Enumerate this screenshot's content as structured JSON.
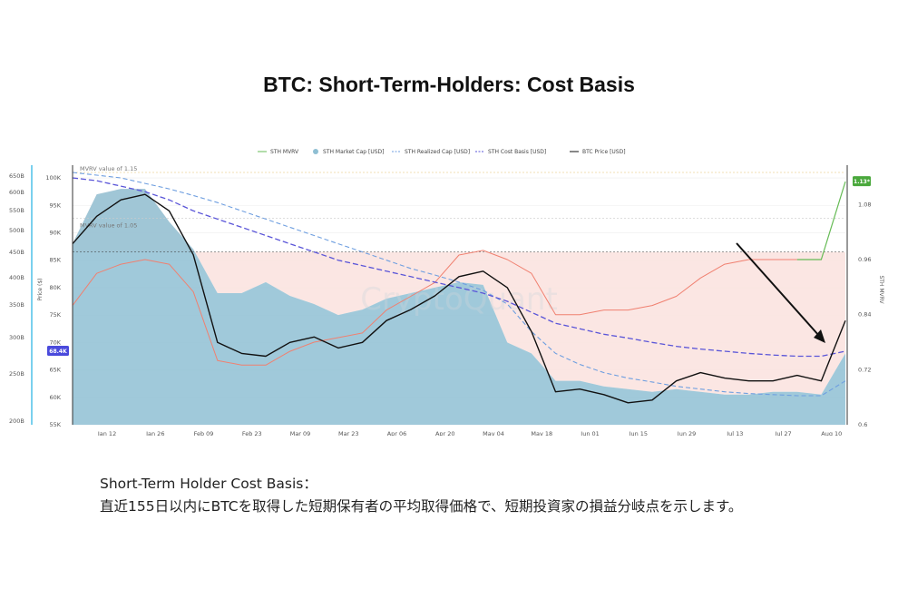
{
  "title": "BTC: Short-Term-Holders: Cost Basis",
  "caption": {
    "line1": "Short-Term Holder Cost Basis：",
    "line2": "直近155日以内にBTCを取得した短期保有者の平均取得価格で、短期投資家の損益分岐点を示します。"
  },
  "watermark": "CryptoQuant",
  "colors": {
    "mvrv": "#f08070",
    "mvrv_green": "#66bb55",
    "market_cap_fill": "#8fbfd3",
    "realized_cap": "#6f9fe0",
    "cost_basis": "#5a55d8",
    "btc_price": "#111111",
    "profit_zone": "#fbe3e0",
    "badge_price": "#4a4adc",
    "badge_mvrv": "#4aa83c"
  },
  "chart_data": {
    "type": "line",
    "title": "",
    "legend": [
      "STH MVRV",
      "STH Market Cap [USD]",
      "STH Realized Cap [USD]",
      "STH Cost Basis [USD]",
      "BTC Price [USD]"
    ],
    "legend_position": "top",
    "x_ticks": [
      "Jan 12",
      "Jan 26",
      "Feb 09",
      "Feb 23",
      "Mar 09",
      "Mar 23",
      "Apr 06",
      "Apr 20",
      "May 04",
      "May 18",
      "Jun 01",
      "Jun 15",
      "Jun 29",
      "Jul 13",
      "Jul 27",
      "Aug 10"
    ],
    "left_axis_cap": {
      "ticks": [
        "200B",
        "250B",
        "300B",
        "350B",
        "400B",
        "450B",
        "500B",
        "550B",
        "600B",
        "650B"
      ]
    },
    "price_axis": {
      "label": "Price ($)",
      "ticks": [
        "55K",
        "60K",
        "65K",
        "70K",
        "75K",
        "80K",
        "85K",
        "90K",
        "95K",
        "100K"
      ],
      "ylim": [
        55000,
        101000
      ]
    },
    "right_axis": {
      "label": "STH MVRV",
      "ticks": [
        "0.6",
        "0.72",
        "0.84",
        "0.96",
        "1.08"
      ],
      "ylim": [
        0.6,
        1.15
      ]
    },
    "annotations": [
      "MVRV value of 1.15",
      "MVRV value of 1.05"
    ],
    "badges": {
      "price": "68.4K",
      "mvrv": "1.13*"
    },
    "x": [
      0,
      7,
      14,
      21,
      28,
      35,
      42,
      49,
      56,
      63,
      70,
      77,
      84,
      91,
      98,
      105,
      112,
      119,
      126,
      133,
      140,
      147,
      154,
      161,
      168,
      175,
      182,
      189,
      196,
      203,
      210,
      217,
      224
    ],
    "series": [
      {
        "name": "BTC Price [USD]",
        "axis": "price",
        "values": [
          88000,
          93000,
          96000,
          97000,
          94000,
          86000,
          70000,
          68000,
          67500,
          70000,
          71000,
          69000,
          70000,
          74000,
          76000,
          78500,
          82000,
          83000,
          80000,
          72000,
          61000,
          61500,
          60500,
          59000,
          59500,
          63000,
          64500,
          63500,
          63000,
          63000,
          64000,
          63000,
          74000
        ]
      },
      {
        "name": "STH Cost Basis [USD]",
        "axis": "price",
        "values": [
          100000,
          99500,
          98500,
          97500,
          96000,
          94000,
          92500,
          91000,
          89500,
          88000,
          86500,
          85000,
          84000,
          83000,
          82000,
          81000,
          80000,
          79000,
          77500,
          75500,
          73500,
          72500,
          71500,
          70800,
          70000,
          69300,
          68800,
          68400,
          68000,
          67700,
          67500,
          67500,
          68400
        ]
      },
      {
        "name": "STH Realized Cap [USD]",
        "axis": "price",
        "values": [
          101000,
          100500,
          100000,
          99000,
          98000,
          96800,
          95500,
          94000,
          92500,
          91000,
          89500,
          88000,
          86500,
          85000,
          83500,
          82300,
          81000,
          79500,
          77000,
          72000,
          68000,
          66000,
          64500,
          63500,
          62800,
          62000,
          61500,
          61000,
          60700,
          60500,
          60300,
          60300,
          63000
        ]
      },
      {
        "name": "STH Market Cap [USD]",
        "axis": "price",
        "values": [
          88000,
          97000,
          98000,
          98000,
          92000,
          87000,
          79000,
          79000,
          81000,
          78500,
          77000,
          75000,
          76000,
          78000,
          79000,
          80000,
          81000,
          80500,
          70000,
          68000,
          63000,
          63000,
          62000,
          61500,
          61000,
          61500,
          61000,
          60500,
          60500,
          61000,
          61000,
          60500,
          68000
        ]
      },
      {
        "name": "STH MVRV",
        "axis": "right",
        "values": [
          0.86,
          0.93,
          0.95,
          0.96,
          0.95,
          0.89,
          0.74,
          0.73,
          0.73,
          0.76,
          0.78,
          0.79,
          0.8,
          0.85,
          0.88,
          0.91,
          0.97,
          0.98,
          0.96,
          0.93,
          0.84,
          0.84,
          0.85,
          0.85,
          0.86,
          0.88,
          0.92,
          0.95,
          0.96,
          0.96,
          0.96,
          0.96,
          1.13
        ]
      }
    ]
  }
}
